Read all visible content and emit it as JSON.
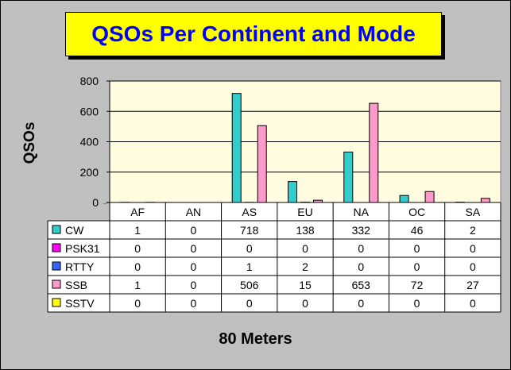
{
  "title": "QSOs Per Continent and Mode",
  "chart_data": {
    "type": "bar",
    "title": "QSOs Per Continent and Mode",
    "xlabel": "80 Meters",
    "ylabel": "QSOs",
    "ylim": [
      0,
      800
    ],
    "yticks": [
      "0",
      "200",
      "400",
      "600",
      "800"
    ],
    "grid": true,
    "legend": "data-table",
    "categories": [
      "AF",
      "AN",
      "AS",
      "EU",
      "NA",
      "OC",
      "SA"
    ],
    "series": [
      {
        "name": "CW",
        "color": "#33cccc",
        "values": [
          1,
          0,
          718,
          138,
          332,
          46,
          2
        ]
      },
      {
        "name": "PSK31",
        "color": "#ff00ff",
        "values": [
          0,
          0,
          0,
          0,
          0,
          0,
          0
        ]
      },
      {
        "name": "RTTY",
        "color": "#3366ff",
        "values": [
          0,
          0,
          1,
          2,
          0,
          0,
          0
        ]
      },
      {
        "name": "SSB",
        "color": "#ff99cc",
        "values": [
          1,
          0,
          506,
          15,
          653,
          72,
          27
        ]
      },
      {
        "name": "SSTV",
        "color": "#ffff00",
        "values": [
          0,
          0,
          0,
          0,
          0,
          0,
          0
        ]
      }
    ]
  }
}
